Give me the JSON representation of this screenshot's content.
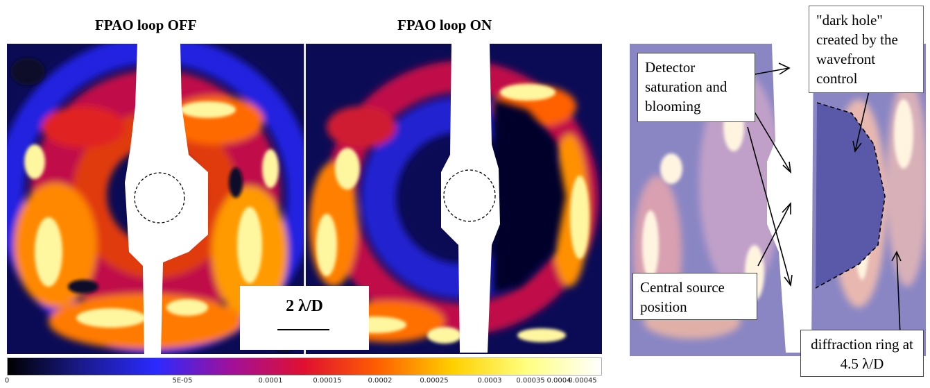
{
  "titles": {
    "left": "FPAO loop OFF",
    "right": "FPAO loop ON"
  },
  "scale_bar": {
    "label": "2 λ/D"
  },
  "colorbar": {
    "ticks": [
      "0",
      "5E-05",
      "0.0001",
      "0.00015",
      "0.0002",
      "0.00025",
      "0.0003",
      "0.00035",
      "0.0004",
      "0.00045"
    ],
    "colors": [
      "#000000",
      "#1a1a8c",
      "#2a2aff",
      "#a0109a",
      "#e01030",
      "#ff6000",
      "#ffd000",
      "#ffff80",
      "#ffffff"
    ]
  },
  "annotations": {
    "dark_hole": "\"dark hole\" created by the wavefront control",
    "detector": "Detector saturation and blooming",
    "central": "Central source position",
    "ring": "diffraction ring at 4.5 λ/D"
  }
}
